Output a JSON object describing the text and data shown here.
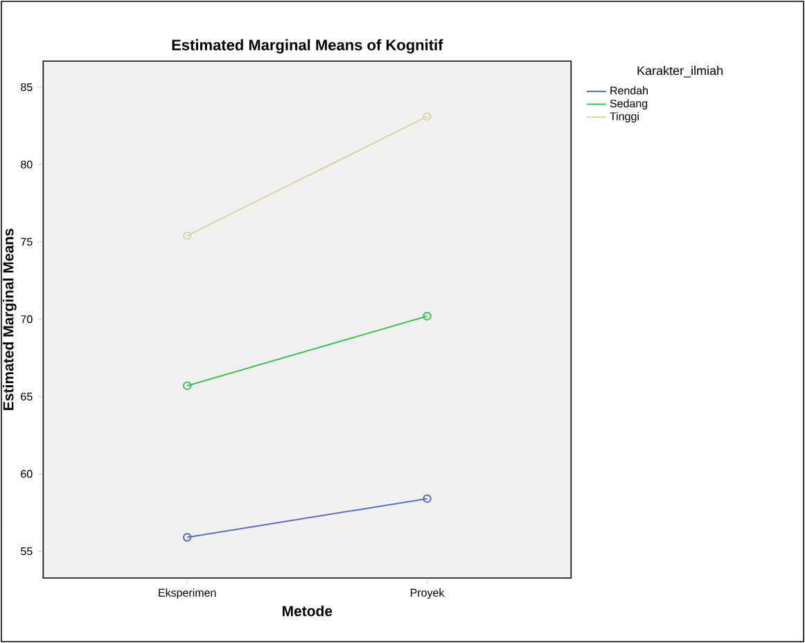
{
  "chart_data": {
    "type": "line",
    "title": "Estimated Marginal Means of Kognitif",
    "xlabel": "Metode",
    "ylabel": "Estimated Marginal Means",
    "legend_title": "Karakter_ilmiah",
    "categories": [
      "Eksperimen",
      "Proyek"
    ],
    "series": [
      {
        "name": "Rendah",
        "color": "#5a6ec0",
        "values": [
          55.9,
          58.4
        ]
      },
      {
        "name": "Sedang",
        "color": "#3fc052",
        "values": [
          65.7,
          70.2
        ]
      },
      {
        "name": "Tinggi",
        "color": "#d9d3a6",
        "values": [
          75.4,
          83.1
        ]
      }
    ],
    "ylim": [
      53.27,
      86.68
    ],
    "yticks": [
      55,
      60,
      65,
      70,
      75,
      80,
      85
    ],
    "marker": "circle",
    "line_style": "solid",
    "grid": false,
    "legend": "top right"
  }
}
